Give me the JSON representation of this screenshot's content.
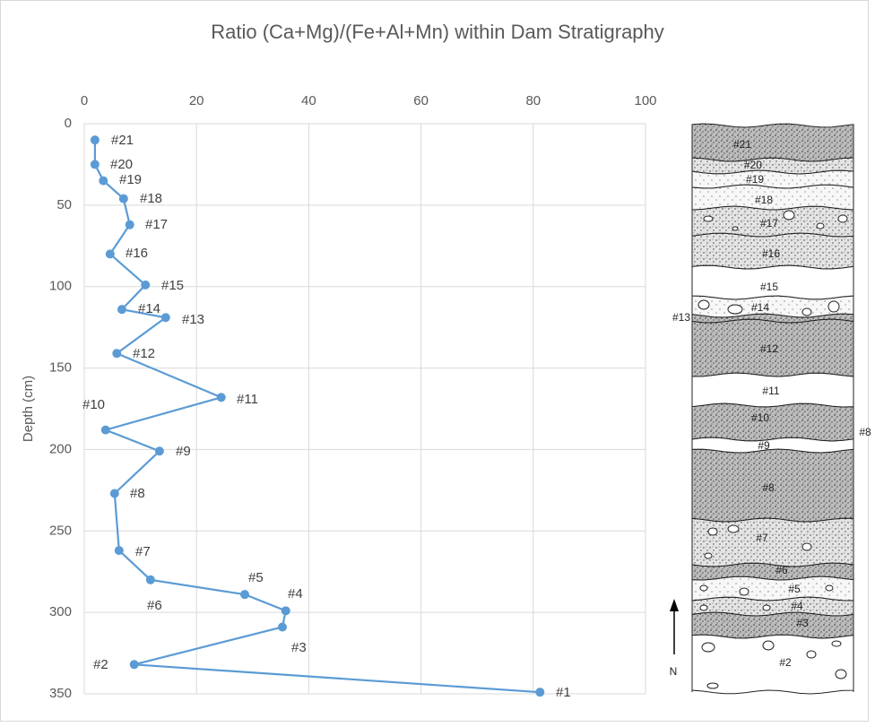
{
  "chart_data": {
    "type": "line",
    "title": "Ratio (Ca+Mg)/(Fe+Al+Mn) within Dam Stratigraphy",
    "y_label": "Depth (cm)",
    "x": [
      1.9,
      1.9,
      3.4,
      7.0,
      8.1,
      4.6,
      10.9,
      6.7,
      14.5,
      5.8,
      24.4,
      3.8,
      13.4,
      5.4,
      6.2,
      11.8,
      28.6,
      35.9,
      35.3,
      8.9,
      81.2
    ],
    "values": [
      10,
      25,
      35,
      46,
      62,
      80,
      99,
      114,
      119,
      141,
      168,
      188,
      201,
      227,
      262,
      280,
      289,
      299,
      309,
      332,
      349
    ],
    "point_labels": [
      "#21",
      "#20",
      "#19",
      "#18",
      "#17",
      "#16",
      "#15",
      "#14",
      "#13",
      "#12",
      "#11",
      "#10",
      "#9",
      "#8",
      "#7",
      "#6",
      "#5",
      "#4",
      "#3",
      "#2",
      "#1"
    ],
    "color": "#5b9bd5",
    "xlim": [
      0,
      100
    ],
    "xticks": [
      0,
      20,
      40,
      60,
      80,
      100
    ],
    "ylim": [
      0,
      350
    ],
    "yticks": [
      0,
      50,
      100,
      150,
      200,
      250,
      300,
      350
    ],
    "y_inverted": true,
    "grid": true
  },
  "stratigraphy": {
    "layers": [
      "#21",
      "#20",
      "#19",
      "#18",
      "#17",
      "#16",
      "#15",
      "#14",
      "#13",
      "#12",
      "#11",
      "#10",
      "#8",
      "#9",
      "#8",
      "#7",
      "#6",
      "#5",
      "#4",
      "#3",
      "#2"
    ],
    "north": "N"
  }
}
